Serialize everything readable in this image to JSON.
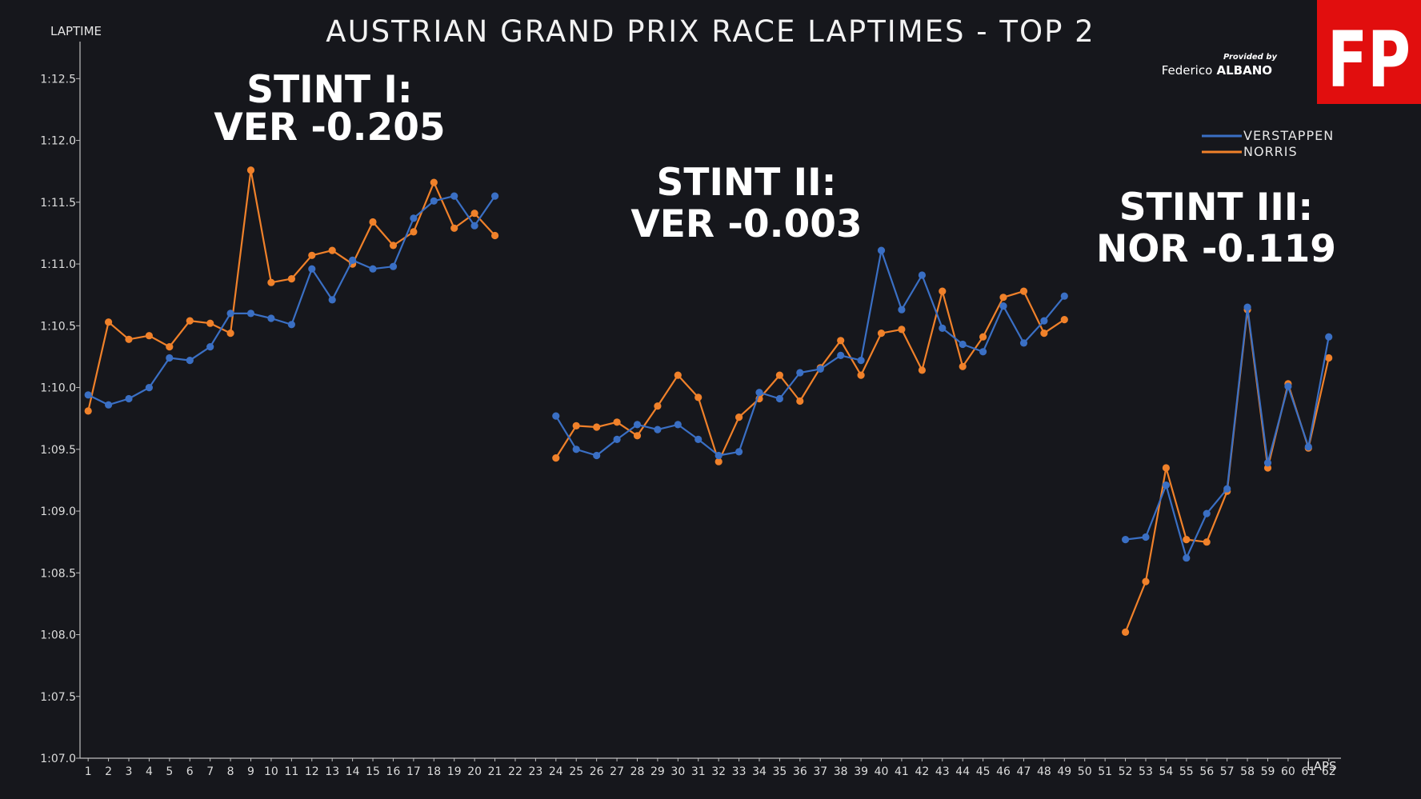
{
  "chart_data": {
    "type": "line",
    "title": "AUSTRIAN GRAND PRIX RACE LAPTIMES - TOP 2",
    "xlabel": "LAPS",
    "ylabel": "LAPTIME",
    "ylim": [
      67.0,
      72.8
    ],
    "xlim": [
      0.6,
      62.6
    ],
    "y_ticks": [
      {
        "value": 67.0,
        "label": "1:07.0"
      },
      {
        "value": 67.5,
        "label": "1:07.5"
      },
      {
        "value": 68.0,
        "label": "1:08.0"
      },
      {
        "value": 68.5,
        "label": "1:08.5"
      },
      {
        "value": 69.0,
        "label": "1:09.0"
      },
      {
        "value": 69.5,
        "label": "1:09.5"
      },
      {
        "value": 70.0,
        "label": "1:10.0"
      },
      {
        "value": 70.5,
        "label": "1:10.5"
      },
      {
        "value": 71.0,
        "label": "1:11.0"
      },
      {
        "value": 71.5,
        "label": "1:11.5"
      },
      {
        "value": 72.0,
        "label": "1:12.0"
      },
      {
        "value": 72.5,
        "label": "1:12.5"
      }
    ],
    "x_ticks": [
      "1",
      "2",
      "3",
      "4",
      "5",
      "6",
      "7",
      "8",
      "9",
      "10",
      "11",
      "12",
      "13",
      "14",
      "15",
      "16",
      "17",
      "18",
      "19",
      "20",
      "21",
      "22",
      "23",
      "24",
      "25",
      "26",
      "27",
      "28",
      "29",
      "30",
      "31",
      "32",
      "33",
      "34",
      "35",
      "36",
      "37",
      "38",
      "39",
      "40",
      "41",
      "42",
      "43",
      "44",
      "45",
      "46",
      "47",
      "48",
      "49",
      "50",
      "51",
      "52",
      "53",
      "54",
      "55",
      "56",
      "57",
      "58",
      "59",
      "60",
      "61",
      "62"
    ],
    "grid": false,
    "legend_position": "top-right",
    "series": [
      {
        "name": "VERSTAPPEN",
        "color": "#3a6fc4",
        "segments": [
          [
            [
              1,
              69.94
            ],
            [
              2,
              69.86
            ],
            [
              3,
              69.91
            ],
            [
              4,
              70.0
            ],
            [
              5,
              70.24
            ],
            [
              6,
              70.22
            ],
            [
              7,
              70.33
            ],
            [
              8,
              70.6
            ],
            [
              9,
              70.6
            ],
            [
              10,
              70.56
            ],
            [
              11,
              70.51
            ],
            [
              12,
              70.96
            ],
            [
              13,
              70.71
            ],
            [
              14,
              71.03
            ],
            [
              15,
              70.96
            ],
            [
              16,
              70.98
            ],
            [
              17,
              71.37
            ],
            [
              18,
              71.51
            ],
            [
              19,
              71.55
            ],
            [
              20,
              71.31
            ],
            [
              21,
              71.55
            ]
          ],
          [
            [
              24,
              69.77
            ],
            [
              25,
              69.5
            ],
            [
              26,
              69.45
            ],
            [
              27,
              69.58
            ],
            [
              28,
              69.7
            ],
            [
              29,
              69.66
            ],
            [
              30,
              69.7
            ],
            [
              31,
              69.58
            ],
            [
              32,
              69.45
            ],
            [
              33,
              69.48
            ],
            [
              34,
              69.96
            ],
            [
              35,
              69.91
            ],
            [
              36,
              70.12
            ],
            [
              37,
              70.15
            ],
            [
              38,
              70.26
            ],
            [
              39,
              70.22
            ],
            [
              40,
              71.11
            ],
            [
              41,
              70.63
            ],
            [
              42,
              70.91
            ],
            [
              43,
              70.48
            ],
            [
              44,
              70.35
            ],
            [
              45,
              70.29
            ],
            [
              46,
              70.66
            ],
            [
              47,
              70.36
            ],
            [
              48,
              70.54
            ],
            [
              49,
              70.74
            ]
          ],
          [
            [
              52,
              68.77
            ],
            [
              53,
              68.79
            ],
            [
              54,
              69.21
            ],
            [
              55,
              68.62
            ],
            [
              56,
              68.98
            ],
            [
              57,
              69.18
            ],
            [
              58,
              70.65
            ],
            [
              59,
              69.39
            ],
            [
              60,
              70.01
            ],
            [
              61,
              69.52
            ],
            [
              62,
              70.41
            ]
          ]
        ]
      },
      {
        "name": "NORRIS",
        "color": "#f0812a",
        "segments": [
          [
            [
              1,
              69.81
            ],
            [
              2,
              70.53
            ],
            [
              3,
              70.39
            ],
            [
              4,
              70.42
            ],
            [
              5,
              70.33
            ],
            [
              6,
              70.54
            ],
            [
              7,
              70.52
            ],
            [
              8,
              70.44
            ],
            [
              9,
              71.76
            ],
            [
              10,
              70.85
            ],
            [
              11,
              70.88
            ],
            [
              12,
              71.07
            ],
            [
              13,
              71.11
            ],
            [
              14,
              71.0
            ],
            [
              15,
              71.34
            ],
            [
              16,
              71.15
            ],
            [
              17,
              71.26
            ],
            [
              18,
              71.66
            ],
            [
              19,
              71.29
            ],
            [
              20,
              71.41
            ],
            [
              21,
              71.23
            ]
          ],
          [
            [
              24,
              69.43
            ],
            [
              25,
              69.69
            ],
            [
              26,
              69.68
            ],
            [
              27,
              69.72
            ],
            [
              28,
              69.61
            ],
            [
              29,
              69.85
            ],
            [
              30,
              70.1
            ],
            [
              31,
              69.92
            ],
            [
              32,
              69.4
            ],
            [
              33,
              69.76
            ],
            [
              34,
              69.91
            ],
            [
              35,
              70.1
            ],
            [
              36,
              69.89
            ],
            [
              37,
              70.16
            ],
            [
              38,
              70.38
            ],
            [
              39,
              70.1
            ],
            [
              40,
              70.44
            ],
            [
              41,
              70.47
            ],
            [
              42,
              70.14
            ],
            [
              43,
              70.78
            ],
            [
              44,
              70.17
            ],
            [
              45,
              70.41
            ],
            [
              46,
              70.73
            ],
            [
              47,
              70.78
            ],
            [
              48,
              70.44
            ],
            [
              49,
              70.55
            ]
          ],
          [
            [
              52,
              68.02
            ],
            [
              53,
              68.43
            ],
            [
              54,
              69.35
            ],
            [
              55,
              68.77
            ],
            [
              56,
              68.75
            ],
            [
              57,
              69.16
            ],
            [
              58,
              70.63
            ],
            [
              59,
              69.35
            ],
            [
              60,
              70.03
            ],
            [
              61,
              69.51
            ],
            [
              62,
              70.24
            ]
          ]
        ]
      }
    ],
    "annotations": [
      {
        "heading": "STINT I:",
        "value": "VER -0.205",
        "value_color": "#3a6fc4"
      },
      {
        "heading": "STINT II:",
        "value": "VER -0.003",
        "value_color": "#ffffff"
      },
      {
        "heading": "STINT III:",
        "value": "NOR -0.119",
        "value_color": "#f0812a"
      }
    ]
  },
  "credit": {
    "provided_by": "Provided by",
    "author_first": "Federico",
    "author_last": "ALBANO"
  },
  "logo": {
    "text": "FP",
    "color": "#e10e0e"
  }
}
